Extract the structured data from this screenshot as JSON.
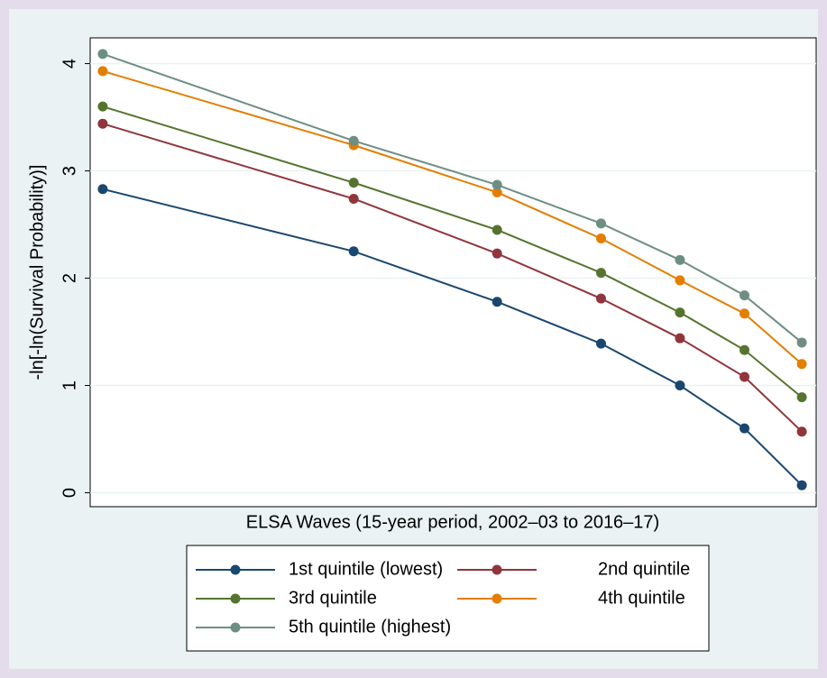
{
  "chart_data": {
    "type": "line",
    "xlabel": "ELSA Waves (15-year period, 2002–03 to 2016–17)",
    "ylabel": "-ln[-ln(Survival Probability)]",
    "x": [
      0.69,
      1.39,
      1.79,
      2.08,
      2.3,
      2.48,
      2.64
    ],
    "xlim": [
      0.655,
      2.68
    ],
    "ylim": [
      -0.13,
      4.24
    ],
    "yticks": [
      0,
      1,
      2,
      3,
      4
    ],
    "grid": true,
    "legend": "bottom",
    "series": [
      {
        "name": "1st quintile (lowest)",
        "color": "#1a476f",
        "values": [
          2.83,
          2.25,
          1.78,
          1.39,
          1.0,
          0.6,
          0.07
        ]
      },
      {
        "name": "2nd quintile",
        "color": "#90353b",
        "values": [
          3.44,
          2.74,
          2.23,
          1.81,
          1.44,
          1.08,
          0.57
        ]
      },
      {
        "name": "3rd quintile",
        "color": "#55752f",
        "values": [
          3.6,
          2.89,
          2.45,
          2.05,
          1.68,
          1.33,
          0.89
        ]
      },
      {
        "name": "4th quintile",
        "color": "#e37e00",
        "values": [
          3.93,
          3.24,
          2.8,
          2.37,
          1.98,
          1.67,
          1.2
        ]
      },
      {
        "name": "5th quintile (highest)",
        "color": "#6e8e84",
        "values": [
          4.09,
          3.28,
          2.87,
          2.51,
          2.17,
          1.84,
          1.4
        ]
      }
    ]
  }
}
